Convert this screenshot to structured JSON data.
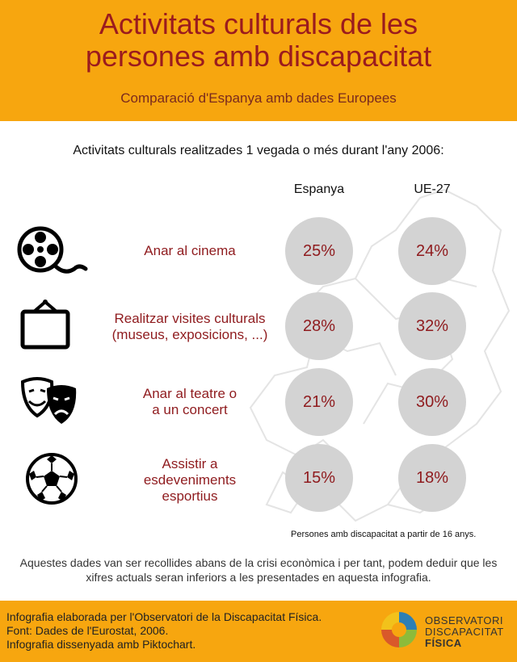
{
  "header": {
    "title_line1": "Activitats culturals de les",
    "title_line2": "persones amb discapacitat",
    "subtitle": "Comparació d'Espanya amb dades Europees"
  },
  "question": "Activitats culturals realitzades 1 vegada o més durant l'any 2006:",
  "columns": {
    "spain": "Espanya",
    "eu": "UE-27"
  },
  "rows": [
    {
      "icon": "film-reel-icon",
      "label_line1": "Anar al cinema",
      "label_line2": "",
      "spain": "25%",
      "eu": "24%"
    },
    {
      "icon": "picture-frame-icon",
      "label_line1": "Realitzar visites culturals",
      "label_line2": "(museus, exposicions, ...)",
      "spain": "28%",
      "eu": "32%"
    },
    {
      "icon": "theatre-masks-icon",
      "label_line1": "Anar al teatre o",
      "label_line2": "a un concert",
      "spain": "21%",
      "eu": "30%"
    },
    {
      "icon": "soccer-ball-icon",
      "label_line1": "Assistir a",
      "label_line2": "esdeveniments",
      "label_line3": "esportius",
      "spain": "15%",
      "eu": "18%"
    }
  ],
  "footnote": "Persones amb discapacitat a partir de 16 anys.",
  "note": "Aquestes dades van ser recollides abans de la crisi econòmica i per tant, podem deduir que les xifres actuals seran inferiors a les presentades en aquesta infografia.",
  "footer": {
    "credit1": "Infografia elaborada per l'Observatori de la Discapacitat Física.",
    "credit2": "Font: Dades de l'Eurostat, 2006.",
    "credit3": "Infografia dissenyada amb Piktochart.",
    "logo_line1": "OBSERVATORI",
    "logo_line2": "DISCAPACITAT",
    "logo_line3": "FÍSICA"
  },
  "colors": {
    "orange": "#f7a60f",
    "dark_red": "#8f1b1e",
    "circle_gray": "#d3d3d3"
  }
}
